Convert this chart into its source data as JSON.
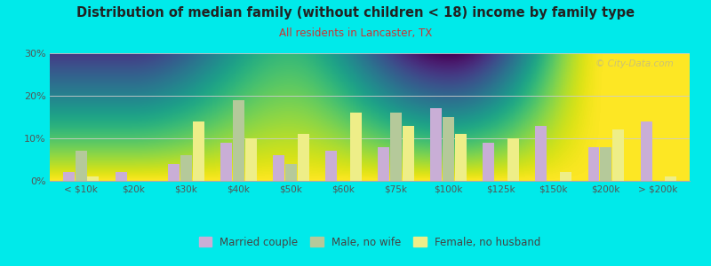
{
  "title": "Distribution of median family (without children < 18) income by family type",
  "subtitle": "All residents in Lancaster, TX",
  "categories": [
    "< $10k",
    "$20k",
    "$30k",
    "$40k",
    "$50k",
    "$60k",
    "$75k",
    "$100k",
    "$125k",
    "$150k",
    "$200k",
    "> $200k"
  ],
  "married_couple": [
    2,
    2,
    4,
    9,
    6,
    7,
    8,
    17,
    9,
    13,
    8,
    14
  ],
  "male_no_wife": [
    7,
    0,
    6,
    19,
    4,
    0,
    16,
    15,
    0,
    0,
    8,
    0
  ],
  "female_no_husband": [
    1,
    0,
    14,
    10,
    11,
    16,
    13,
    11,
    10,
    2,
    12,
    1
  ],
  "color_married": "#c9aed6",
  "color_male": "#b5c99a",
  "color_female": "#eeee88",
  "bg_outer": "#00eaea",
  "title_color": "#222222",
  "subtitle_color": "#cc3333",
  "axis_label_color": "#555555",
  "grid_color": "#cccccc",
  "ylim": [
    0,
    30
  ],
  "yticks": [
    0,
    10,
    20,
    30
  ],
  "legend_labels": [
    "Married couple",
    "Male, no wife",
    "Female, no husband"
  ],
  "watermark": "© City-Data.com",
  "bar_width": 0.22
}
